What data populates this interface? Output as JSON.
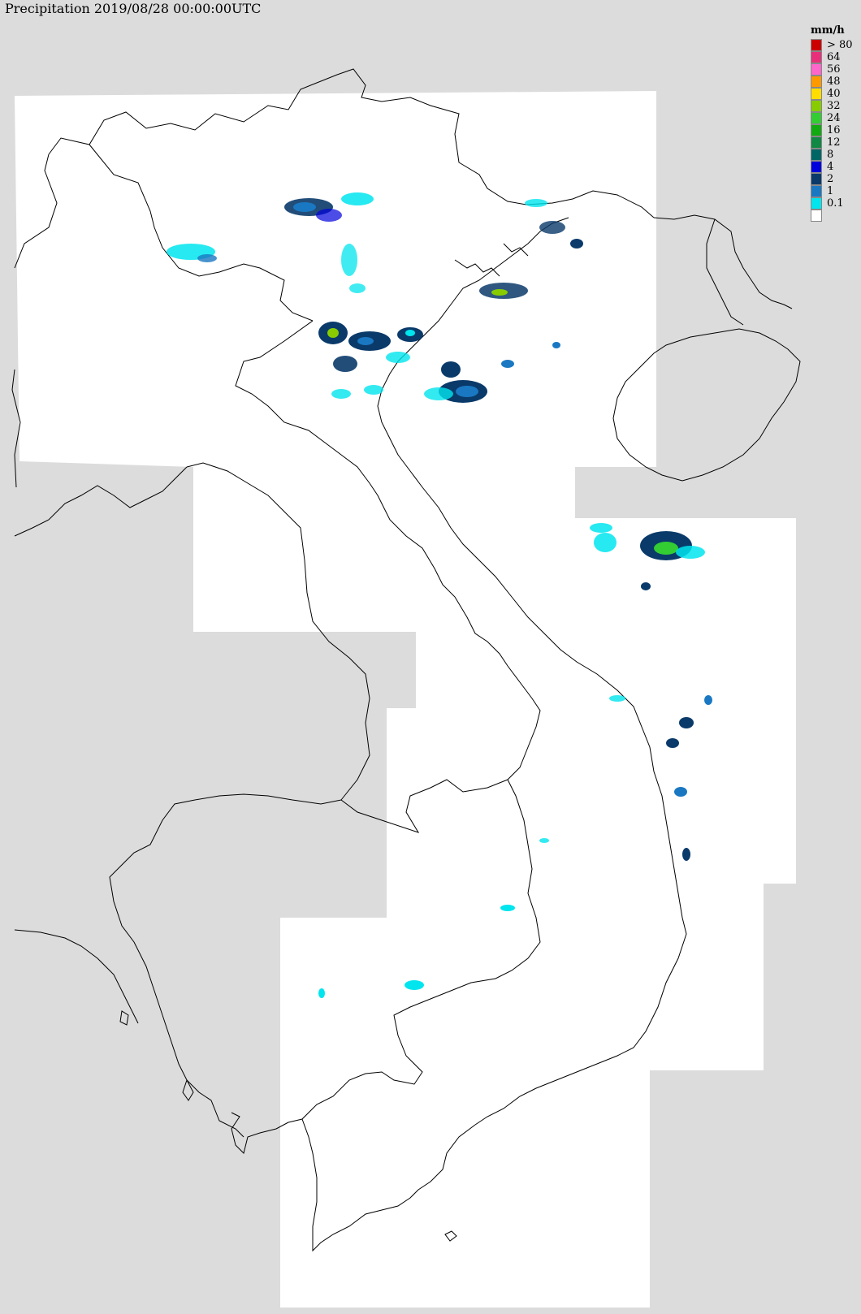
{
  "title": "Precipitation 2019/08/28 00:00:00UTC",
  "legend": {
    "unit": "mm/h",
    "items": [
      {
        "label": "> 80",
        "color": "#cc0000"
      },
      {
        "label": "64",
        "color": "#e8307a"
      },
      {
        "label": "56",
        "color": "#ff66cc"
      },
      {
        "label": "48",
        "color": "#ff9900"
      },
      {
        "label": "40",
        "color": "#ffdd00"
      },
      {
        "label": "32",
        "color": "#88cc00"
      },
      {
        "label": "24",
        "color": "#33cc33"
      },
      {
        "label": "16",
        "color": "#11aa11"
      },
      {
        "label": "12",
        "color": "#118844"
      },
      {
        "label": "8",
        "color": "#006666"
      },
      {
        "label": "4",
        "color": "#0000dd"
      },
      {
        "label": "2",
        "color": "#0a3a6a"
      },
      {
        "label": "1",
        "color": "#1a78c2"
      },
      {
        "label": "0.1",
        "color": "#00e5ee"
      },
      {
        "label": "",
        "color": "#ffffff"
      }
    ]
  },
  "colors": {
    "background": "#dcdcdc",
    "coverage": "#ffffff",
    "border": "#000000"
  }
}
